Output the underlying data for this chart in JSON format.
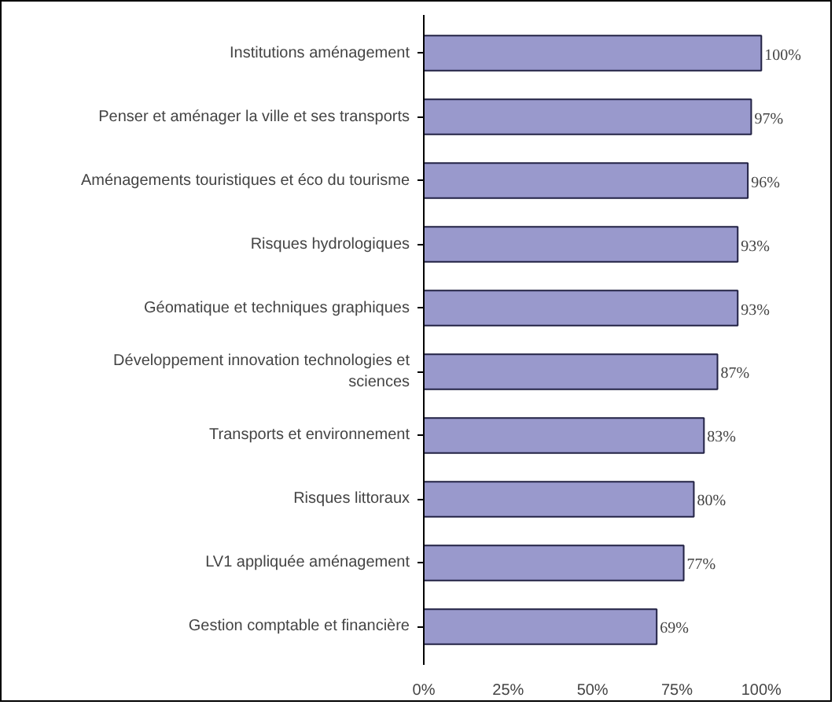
{
  "chart_data": {
    "type": "bar",
    "orientation": "horizontal",
    "categories": [
      "Institutions aménagement",
      "Penser et aménager la ville et ses transports",
      "Aménagements touristiques et éco du tourisme",
      "Risques hydrologiques",
      "Géomatique et techniques graphiques",
      "Développement innovation technologies et sciences",
      "Transports et environnement",
      "Risques littoraux",
      "LV1 appliquée aménagement",
      "Gestion comptable et financière"
    ],
    "values": [
      100,
      97,
      96,
      93,
      93,
      87,
      83,
      80,
      77,
      69
    ],
    "value_labels": [
      "100%",
      "97%",
      "96%",
      "93%",
      "93%",
      "87%",
      "83%",
      "80%",
      "77%",
      "69%"
    ],
    "color": "#9999cc",
    "xlim": [
      0,
      100
    ],
    "xticks": [
      {
        "value": 0,
        "label": "0%"
      },
      {
        "value": 25,
        "label": "25%"
      },
      {
        "value": 50,
        "label": "50%"
      },
      {
        "value": 75,
        "label": "75%"
      },
      {
        "value": 100,
        "label": "100%"
      }
    ],
    "grid": false,
    "legend": false
  }
}
